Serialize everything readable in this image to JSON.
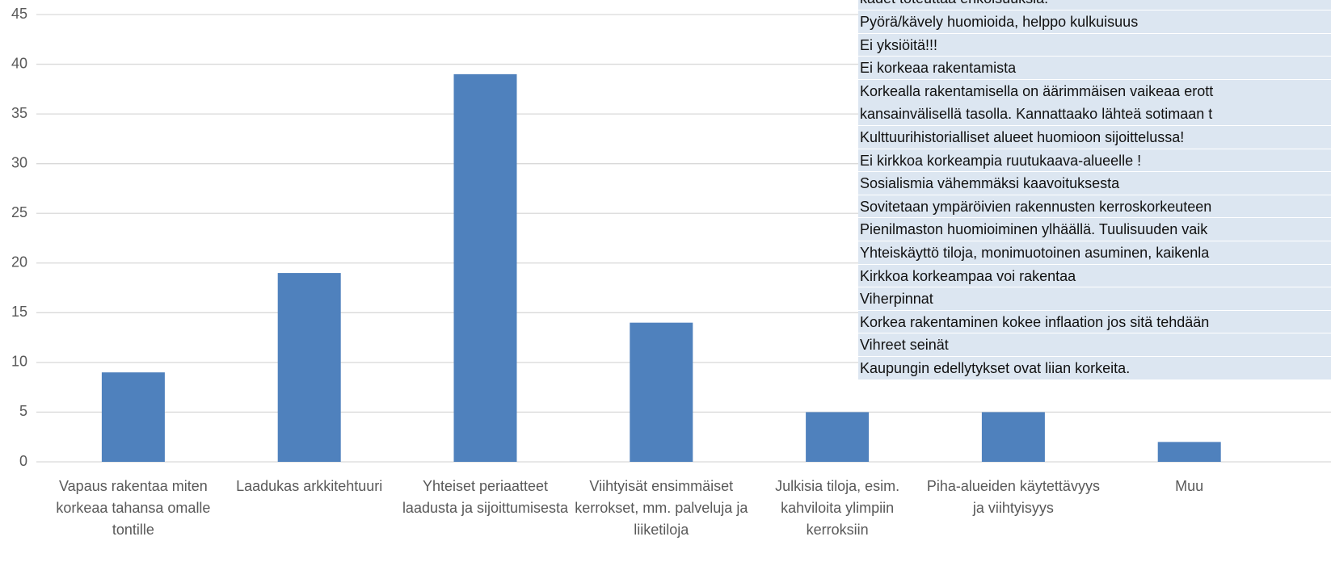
{
  "chart_data": {
    "type": "bar",
    "categories": [
      "Vapaus rakentaa miten korkeaa tahansa omalle tontille",
      "Laadukas arkkitehtuuri",
      "Yhteiset periaatteet laadusta ja sijoittumisesta",
      "Viihtyisät ensimmäiset kerrokset, mm. palveluja ja liiketiloja",
      "Julkisia tiloja, esim. kahviloita ylimpiin kerroksiin",
      "Piha-alueiden käytettävyys ja viihtyisyys",
      "Muu"
    ],
    "values": [
      9,
      19,
      39,
      14,
      5,
      5,
      2
    ],
    "color": "#4f81bd",
    "ylim": [
      0,
      45
    ],
    "yticks": [
      0,
      5,
      10,
      15,
      20,
      25,
      30,
      35,
      40,
      45
    ],
    "grid": true
  },
  "table": {
    "rows": [
      [
        "kadet toteuttaa erikoisuuksia."
      ],
      [
        "Pyörä/kävely huomioida, helppo kulkuisuus"
      ],
      [
        "Ei yksiöitä!!!"
      ],
      [
        "Ei korkeaa rakentamista"
      ],
      [
        "Korkealla rakentamisella on äärimmäisen vaikeaa erott",
        "kansainvälisellä tasolla. Kannattaako lähteä sotimaan t"
      ],
      [
        "Kulttuurihistorialliset alueet huomioon sijoittelussa!"
      ],
      [
        "Ei kirkkoa korkeampia ruutukaava-alueelle !"
      ],
      [
        "Sosialismia vähemmäksi kaavoituksesta"
      ],
      [
        "Sovitetaan ympäröivien rakennusten kerroskorkeuteen"
      ],
      [
        "Pienilmaston huomioiminen ylhäällä. Tuulisuuden vaik"
      ],
      [
        "Yhteiskäyttö tiloja, monimuotoinen asuminen, kaikenla"
      ],
      [
        "Kirkkoa korkeampaa voi rakentaa"
      ],
      [
        "Viherpinnat"
      ],
      [
        "Korkea rakentaminen kokee inflaation jos sitä tehdään"
      ],
      [
        "Vihreet seinät"
      ],
      [
        "Kaupungin edellytykset ovat liian korkeita."
      ]
    ]
  }
}
